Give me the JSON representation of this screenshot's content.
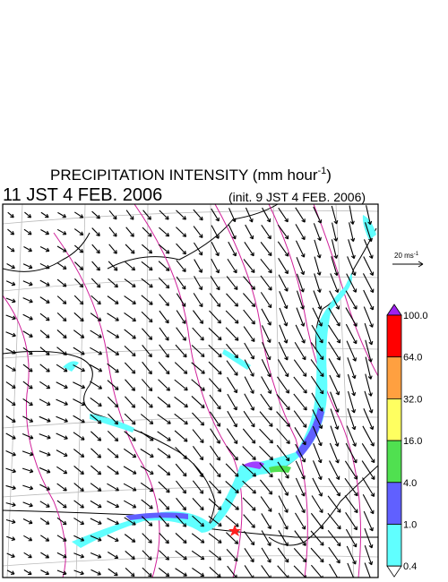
{
  "title": {
    "main": "PRECIPITATION INTENSITY (mm hour",
    "sup": "-1",
    "close": ")"
  },
  "valid_time": "11 JST 4 FEB. 2006",
  "init_time": "(init. 9 JST 4 FEB. 2006)",
  "wind_legend": {
    "label": "20 ms",
    "sup": "-1"
  },
  "colorbar": [
    {
      "label": "100.0",
      "color": "#ff0000"
    },
    {
      "label": "64.0",
      "color": "#ffa040"
    },
    {
      "label": "32.0",
      "color": "#ffff60"
    },
    {
      "label": "16.0",
      "color": "#50e050"
    },
    {
      "label": "4.0",
      "color": "#6060ff"
    },
    {
      "label": "1.0",
      "color": "#60ffff"
    },
    {
      "label": "0.4",
      "color": "#ffffff"
    }
  ]
}
